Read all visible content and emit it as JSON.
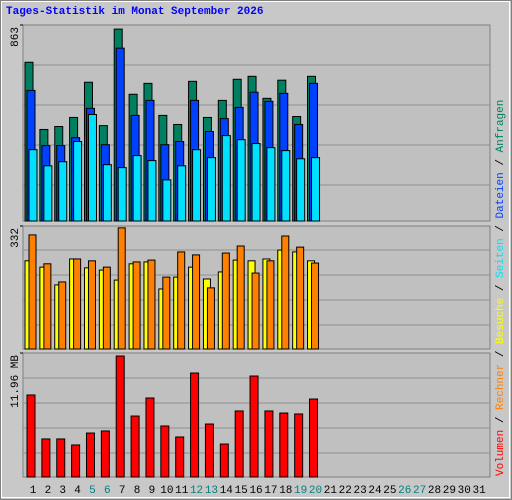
{
  "title": "Tages-Statistik im Monat September 2026",
  "chart_data": {
    "type": "bar",
    "categories": [
      "1",
      "2",
      "3",
      "4",
      "5",
      "6",
      "7",
      "8",
      "9",
      "10",
      "11",
      "12",
      "13",
      "14",
      "15",
      "16",
      "17",
      "18",
      "19",
      "20",
      "21",
      "22",
      "23",
      "24",
      "25",
      "26",
      "27",
      "28",
      "29",
      "30",
      "31"
    ],
    "weekend": [
      "5",
      "6",
      "12",
      "13",
      "19",
      "20",
      "26",
      "27"
    ],
    "weekend_color": "#008080",
    "legend_separator": " / ",
    "panels": [
      {
        "ylim": [
          0,
          863
        ],
        "yticks": [
          863
        ],
        "series": [
          {
            "name": "Anfragen",
            "color": "#008060",
            "values": [
              699,
              403,
              416,
              456,
              611,
              420,
              845,
              558,
              606,
              465,
              425,
              615,
              456,
              531,
              624,
              637,
              540,
              620,
              460,
              637,
              null,
              null,
              null,
              null,
              null,
              null,
              null,
              null,
              null,
              null,
              null
            ]
          },
          {
            "name": "Dateien",
            "color": "#0040ff",
            "values": [
              575,
              332,
              332,
              367,
              496,
              336,
              761,
              465,
              531,
              336,
              350,
              531,
              394,
              451,
              500,
              567,
              527,
              562,
              425,
              606,
              null,
              null,
              null,
              null,
              null,
              null,
              null,
              null,
              null,
              null,
              null
            ]
          },
          {
            "name": "Seiten",
            "color": "#00e0ff",
            "values": [
              314,
              243,
              261,
              350,
              469,
              248,
              235,
              288,
              266,
              181,
              243,
              314,
              279,
              376,
              358,
              341,
              323,
              310,
              274,
              279,
              null,
              null,
              null,
              null,
              null,
              null,
              null,
              null,
              null,
              null,
              null
            ]
          }
        ]
      },
      {
        "ylim": [
          0,
          332
        ],
        "yticks": [
          332
        ],
        "series": [
          {
            "name": "Besuche",
            "color": "#ffff00",
            "values": [
              238,
              221,
              173,
              243,
              219,
              213,
              186,
              230,
              235,
              162,
              194,
              221,
              189,
              208,
              240,
              238,
              243,
              267,
              262,
              238,
              null,
              null,
              null,
              null,
              null,
              null,
              null,
              null,
              null,
              null,
              null
            ]
          },
          {
            "name": "Rechner",
            "color": "#ff8000",
            "values": [
              308,
              230,
              181,
              243,
              238,
              221,
              327,
              235,
              240,
              194,
              262,
              254,
              165,
              259,
              278,
              205,
              238,
              305,
              275,
              232,
              null,
              null,
              null,
              null,
              null,
              null,
              null,
              null,
              null,
              null,
              null
            ]
          }
        ]
      },
      {
        "ylim": [
          0,
          11.96
        ],
        "yticks": [
          {
            "value": 11.96,
            "label": "11.96 MB"
          }
        ],
        "series": [
          {
            "name": "Volumen",
            "color": "#ff0000",
            "values": [
              7.91,
              3.67,
              3.67,
              3.09,
              4.24,
              4.44,
              11.67,
              5.88,
              7.62,
              4.92,
              3.86,
              10.03,
              5.11,
              3.18,
              6.37,
              9.74,
              6.37,
              6.17,
              6.08,
              7.52,
              null,
              null,
              null,
              null,
              null,
              null,
              null,
              null,
              null,
              null,
              null
            ]
          }
        ]
      }
    ]
  }
}
